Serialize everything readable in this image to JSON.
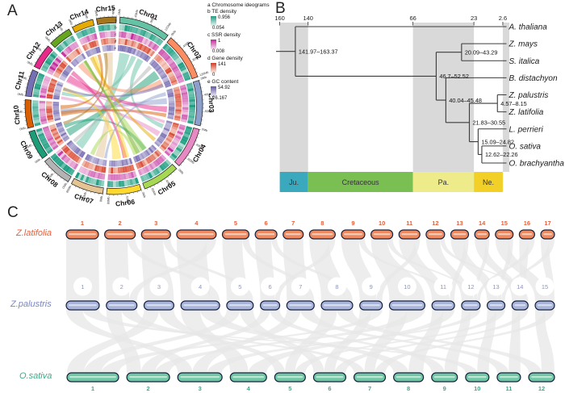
{
  "figure": {
    "panels": {
      "a": "A",
      "b": "B",
      "c": "C"
    }
  },
  "circos": {
    "panel_label": "A",
    "legend": {
      "ideogram_title": "a Chromosome ideograms",
      "items": [
        {
          "key": "b",
          "title": "b TE density",
          "max": "0.956",
          "min": "0.054",
          "color_top": "#1f9e83",
          "color_bottom": "#e9f6f1"
        },
        {
          "key": "c",
          "title": "c SSR density",
          "max": "1",
          "min": "0.008",
          "color_top": "#c0279b",
          "color_bottom": "#f9e4f1"
        },
        {
          "key": "d",
          "title": "d Gene density",
          "max": "141",
          "min": "0",
          "color_top": "#d63a24",
          "color_bottom": "#fdeee2"
        },
        {
          "key": "e",
          "title": "e GC content",
          "max": "54.92",
          "min": "26.167",
          "color_top": "#6458a7",
          "color_bottom": "#eae9f4"
        }
      ]
    },
    "ring_letters": [
      "a",
      "b",
      "c",
      "d",
      "e"
    ],
    "tick_unit": "Mb",
    "tick_label_every_mb": 40,
    "tick_minor_mb": 10,
    "chromosomes": [
      {
        "name": "Chr01",
        "size_mb": 130,
        "color": "#66c2a5"
      },
      {
        "name": "Chr02",
        "size_mb": 120,
        "color": "#fc8d62"
      },
      {
        "name": "Chr03",
        "size_mb": 115,
        "color": "#8da0cb"
      },
      {
        "name": "Chr04",
        "size_mb": 105,
        "color": "#e78ac3"
      },
      {
        "name": "Chr05",
        "size_mb": 95,
        "color": "#a6d854"
      },
      {
        "name": "Chr06",
        "size_mb": 88,
        "color": "#ffd92f"
      },
      {
        "name": "Chr07",
        "size_mb": 83,
        "color": "#e5c494"
      },
      {
        "name": "Chr08",
        "size_mb": 78,
        "color": "#b3b3b3"
      },
      {
        "name": "Chr09",
        "size_mb": 75,
        "color": "#1b9e77"
      },
      {
        "name": "Chr10",
        "size_mb": 72,
        "color": "#d95f02"
      },
      {
        "name": "Chr11",
        "size_mb": 68,
        "color": "#7570b3"
      },
      {
        "name": "Chr12",
        "size_mb": 62,
        "color": "#e7298a"
      },
      {
        "name": "Chr13",
        "size_mb": 58,
        "color": "#66a61e"
      },
      {
        "name": "Chr14",
        "size_mb": 55,
        "color": "#e6ab02"
      },
      {
        "name": "Chr15",
        "size_mb": 50,
        "color": "#a6761d"
      }
    ],
    "chords": [
      [
        1,
        0.06,
        0.4,
        8,
        0.25,
        0.72
      ],
      [
        1,
        0.46,
        0.62,
        11,
        0.3,
        0.52
      ],
      [
        1,
        0.68,
        0.88,
        4,
        0.18,
        0.36
      ],
      [
        9,
        0.1,
        0.52,
        2,
        0.3,
        0.62
      ],
      [
        9,
        0.6,
        0.82,
        5,
        0.3,
        0.5
      ],
      [
        2,
        0.66,
        0.92,
        13,
        0.2,
        0.62
      ],
      [
        3,
        0.28,
        0.5,
        10,
        0.28,
        0.6
      ],
      [
        12,
        0.08,
        0.55,
        3,
        0.58,
        0.8
      ],
      [
        12,
        0.62,
        0.92,
        6,
        0.16,
        0.36
      ],
      [
        6,
        0.45,
        0.88,
        11,
        0.56,
        0.82
      ],
      [
        6,
        0.05,
        0.32,
        14,
        0.28,
        0.62
      ],
      [
        7,
        0.18,
        0.62,
        15,
        0.18,
        0.78
      ],
      [
        8,
        0.76,
        0.95,
        2,
        0.04,
        0.18
      ],
      [
        5,
        0.28,
        0.6,
        13,
        0.64,
        0.92
      ],
      [
        4,
        0.5,
        0.72,
        11,
        0.04,
        0.22
      ],
      [
        14,
        0.08,
        0.38,
        4,
        0.82,
        0.97
      ],
      [
        10,
        0.18,
        0.48,
        3,
        0.84,
        0.98
      ],
      [
        11,
        0.6,
        0.78,
        2,
        0.82,
        0.95
      ],
      [
        13,
        0.74,
        0.94,
        5,
        0.62,
        0.82
      ],
      [
        15,
        0.02,
        0.3,
        9,
        0.8,
        0.97
      ],
      [
        4,
        0.02,
        0.14,
        12,
        0.0,
        0.1
      ],
      [
        5,
        0.72,
        0.94,
        7,
        0.68,
        0.9
      ],
      [
        3,
        0.06,
        0.2,
        7,
        0.02,
        0.16
      ],
      [
        10,
        0.6,
        0.82,
        14,
        0.7,
        0.94
      ]
    ]
  },
  "phylogeny": {
    "panel_label": "B",
    "axis_ticks": [
      {
        "label": "160",
        "t": 160
      },
      {
        "label": "140",
        "t": 140
      },
      {
        "label": "66",
        "t": 66
      },
      {
        "label": "23",
        "t": 23
      },
      {
        "label": "2.6",
        "t": 2.6
      }
    ],
    "periods": [
      {
        "label": "Ju.",
        "from": 160,
        "to": 140,
        "color": "#3aa9bd",
        "shaded": true
      },
      {
        "label": "Cretaceous",
        "from": 140,
        "to": 66,
        "color": "#7abf52",
        "shaded": false
      },
      {
        "label": "Pa.",
        "from": 66,
        "to": 23,
        "color": "#eeec8a",
        "shaded": true
      },
      {
        "label": "Ne.",
        "from": 23,
        "to": 2.6,
        "color": "#f2d028",
        "shaded": false
      },
      {
        "label": "",
        "from": 2.6,
        "to": -2,
        "color": "#d9d9d9",
        "shaded": true,
        "row_hidden": true
      }
    ],
    "tree": {
      "age": 149,
      "label": "141.97–163.37",
      "children": [
        {
          "name": "A. thaliana"
        },
        {
          "age": 49.6,
          "label": "46.7–52.52",
          "children": [
            {
              "age": 31.7,
              "label": "20.09–43.29",
              "children": [
                {
                  "name": "Z. mays"
                },
                {
                  "name": "S. italica"
                }
              ]
            },
            {
              "age": 42.8,
              "label": "40.04–45.48",
              "children": [
                {
                  "name": "B. distachyon"
                },
                {
                  "age": 26.2,
                  "label": "21.83–30.55",
                  "children": [
                    {
                      "age": 6.4,
                      "label": "4.57–8.15",
                      "children": [
                        {
                          "name": "Z. palustris"
                        },
                        {
                          "name": "Z. latifolia"
                        }
                      ]
                    },
                    {
                      "age": 20,
                      "label": "15.09–24.82",
                      "children": [
                        {
                          "name": "L. perrieri"
                        },
                        {
                          "age": 17.4,
                          "label": "12.62–22.26",
                          "children": [
                            {
                              "name": "O. sativa"
                            },
                            {
                              "name": "O. brachyantha"
                            }
                          ]
                        }
                      ]
                    }
                  ]
                }
              ]
            }
          ]
        }
      ]
    }
  },
  "synteny": {
    "panel_label": "C",
    "species": [
      {
        "name": "Z.latifolia",
        "label_color": "#e4603c",
        "bar_fill": "#ee8a62",
        "bar_stroke": "#16233f",
        "numbers_position": "above",
        "number_color": "#e4603c",
        "chromosome_numbers": [
          "1",
          "2",
          "3",
          "4",
          "5",
          "6",
          "7",
          "8",
          "9",
          "10",
          "11",
          "12",
          "13",
          "14",
          "15",
          "16",
          "17"
        ],
        "sizes": [
          40,
          38,
          36,
          49,
          33,
          27,
          25,
          32,
          29,
          27,
          26,
          23,
          22,
          18,
          22,
          19,
          17
        ]
      },
      {
        "name": "Z.palustris",
        "label_color": "#7a85c1",
        "bar_fill": "#a9b4da",
        "bar_stroke": "#16233f",
        "numbers_position": "circle-above",
        "number_color": "#8a94c8",
        "chromosome_numbers": [
          "1",
          "2",
          "3",
          "4",
          "5",
          "6",
          "7",
          "8",
          "9",
          "10",
          "11",
          "12",
          "13",
          "14",
          "15"
        ],
        "sizes": [
          41,
          38,
          37,
          48,
          33,
          24,
          34,
          39,
          28,
          44,
          28,
          23,
          22,
          20,
          24
        ]
      },
      {
        "name": "O.sativa",
        "label_color": "#3fa984",
        "bar_fill": "#6fc8a3",
        "bar_stroke": "#16233f",
        "numbers_position": "below",
        "number_color": "#3fa984",
        "chromosome_numbers": [
          "1",
          "2",
          "3",
          "4",
          "5",
          "6",
          "7",
          "8",
          "9",
          "10",
          "11",
          "12"
        ],
        "sizes": [
          64,
          53,
          55,
          45,
          38,
          40,
          39,
          37,
          32,
          29,
          29,
          32
        ]
      }
    ],
    "ribbon_color": "#e7e7e7",
    "links_upper": [
      [
        1,
        1,
        3
      ],
      [
        2,
        2,
        3
      ],
      [
        3,
        3,
        3
      ],
      [
        4,
        4,
        3
      ],
      [
        5,
        5,
        3
      ],
      [
        6,
        6,
        3
      ],
      [
        7,
        7,
        3
      ],
      [
        8,
        8,
        3
      ],
      [
        9,
        9,
        3
      ],
      [
        10,
        10,
        3
      ],
      [
        11,
        11,
        3
      ],
      [
        12,
        12,
        3
      ],
      [
        13,
        13,
        3
      ],
      [
        14,
        14,
        3
      ],
      [
        15,
        15,
        3
      ],
      [
        16,
        14,
        1.5
      ],
      [
        17,
        15,
        1.5
      ],
      [
        2,
        4,
        1
      ],
      [
        4,
        2,
        1
      ],
      [
        6,
        8,
        1
      ],
      [
        8,
        6,
        1
      ],
      [
        9,
        11,
        1
      ],
      [
        11,
        9,
        1
      ],
      [
        3,
        5,
        1
      ],
      [
        5,
        7,
        1
      ],
      [
        10,
        12,
        1
      ],
      [
        12,
        14,
        1
      ],
      [
        13,
        11,
        1
      ],
      [
        14,
        12,
        1
      ],
      [
        15,
        13,
        1
      ],
      [
        16,
        12,
        1
      ],
      [
        17,
        13,
        1
      ]
    ],
    "links_lower": [
      [
        1,
        3,
        1
      ],
      [
        1,
        10,
        1
      ],
      [
        2,
        2,
        1
      ],
      [
        2,
        7,
        1
      ],
      [
        3,
        1,
        1
      ],
      [
        3,
        5,
        1
      ],
      [
        4,
        4,
        1
      ],
      [
        4,
        8,
        1
      ],
      [
        5,
        1,
        1
      ],
      [
        5,
        6,
        1
      ],
      [
        6,
        2,
        1
      ],
      [
        6,
        9,
        1
      ],
      [
        7,
        3,
        1
      ],
      [
        7,
        11,
        1
      ],
      [
        8,
        5,
        1
      ],
      [
        8,
        12,
        1
      ],
      [
        9,
        6,
        1
      ],
      [
        9,
        1,
        1
      ],
      [
        10,
        7,
        1
      ],
      [
        10,
        2,
        1
      ],
      [
        11,
        8,
        1
      ],
      [
        11,
        4,
        1
      ],
      [
        12,
        9,
        1
      ],
      [
        12,
        3,
        1
      ],
      [
        13,
        10,
        1
      ],
      [
        13,
        5,
        1
      ],
      [
        14,
        11,
        1
      ],
      [
        14,
        6,
        1
      ],
      [
        15,
        12,
        1
      ],
      [
        15,
        7,
        1
      ]
    ]
  }
}
